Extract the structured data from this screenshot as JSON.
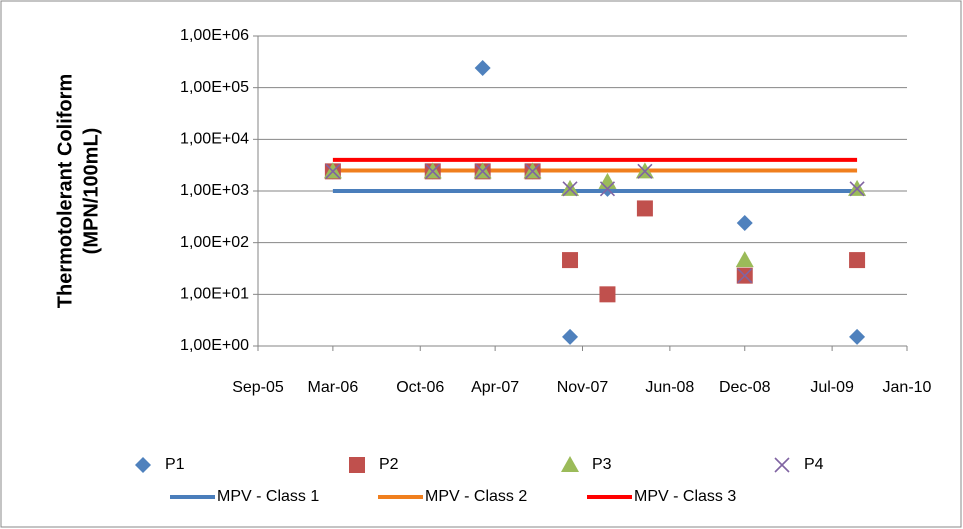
{
  "chart_data": {
    "type": "scatter",
    "y_label": [
      "Thermotolerant Coliform",
      "(MPN/100mL)"
    ],
    "log_y": true,
    "grid": true,
    "legend": "bottom",
    "xlim": [
      "2005-09",
      "2010-01"
    ],
    "xticks": [
      {
        "value": "2005-09",
        "label": "Sep-05"
      },
      {
        "value": "2006-03",
        "label": "Mar-06"
      },
      {
        "value": "2006-10",
        "label": "Oct-06"
      },
      {
        "value": "2007-04",
        "label": "Apr-07"
      },
      {
        "value": "2007-11",
        "label": "Nov-07"
      },
      {
        "value": "2008-06",
        "label": "Jun-08"
      },
      {
        "value": "2008-12",
        "label": "Dec-08"
      },
      {
        "value": "2009-07",
        "label": "Jul-09"
      },
      {
        "value": "2010-01",
        "label": "Jan-10"
      }
    ],
    "ylim": [
      1,
      1000000
    ],
    "yticks": [
      {
        "value": 1,
        "label": "1,00E+00"
      },
      {
        "value": 10,
        "label": "1,00E+01"
      },
      {
        "value": 100,
        "label": "1,00E+02"
      },
      {
        "value": 1000,
        "label": "1,00E+03"
      },
      {
        "value": 10000,
        "label": "1,00E+04"
      },
      {
        "value": 100000,
        "label": "1,00E+05"
      },
      {
        "value": 1000000,
        "label": "1,00E+06"
      }
    ],
    "series": [
      {
        "name": "P1",
        "color": "#4f81bd",
        "marker": "diamond",
        "x": [
          "2006-03",
          "2006-11",
          "2007-03",
          "2007-07",
          "2007-10",
          "2008-01",
          "2008-12",
          "2009-09"
        ],
        "values": [
          2400,
          2400,
          240000,
          2400,
          1.5,
          1100,
          240,
          1.5
        ]
      },
      {
        "name": "P2",
        "color": "#c0504d",
        "marker": "square",
        "x": [
          "2006-03",
          "2006-11",
          "2007-03",
          "2007-07",
          "2007-10",
          "2008-01",
          "2008-04",
          "2008-12",
          "2009-09"
        ],
        "values": [
          2400,
          2400,
          2400,
          2400,
          46,
          10,
          460,
          23,
          46
        ]
      },
      {
        "name": "P3",
        "color": "#9bbb59",
        "marker": "triangle",
        "x": [
          "2006-03",
          "2006-11",
          "2007-03",
          "2007-07",
          "2007-10",
          "2008-01",
          "2008-04",
          "2008-12",
          "2009-09"
        ],
        "values": [
          2400,
          2400,
          2400,
          2400,
          1100,
          1500,
          2400,
          46,
          1100
        ]
      },
      {
        "name": "P4",
        "color": "#8064a2",
        "marker": "cross",
        "x": [
          "2006-03",
          "2006-11",
          "2007-03",
          "2007-07",
          "2007-10",
          "2008-01",
          "2008-04",
          "2008-12",
          "2009-09"
        ],
        "values": [
          2400,
          2400,
          2400,
          2400,
          1100,
          1100,
          2400,
          23,
          1100
        ]
      },
      {
        "name": "MPV - Class 1",
        "color": "#4a7ebb",
        "type": "line",
        "x": [
          "2006-03",
          "2009-09"
        ],
        "values": [
          1000,
          1000
        ]
      },
      {
        "name": "MPV - Class 2",
        "color": "#f07f1e",
        "type": "line",
        "x": [
          "2006-03",
          "2009-09"
        ],
        "values": [
          2500,
          2500
        ]
      },
      {
        "name": "MPV - Class 3",
        "color": "#ff0000",
        "type": "line",
        "x": [
          "2006-03",
          "2009-09"
        ],
        "values": [
          4000,
          4000
        ]
      }
    ]
  }
}
